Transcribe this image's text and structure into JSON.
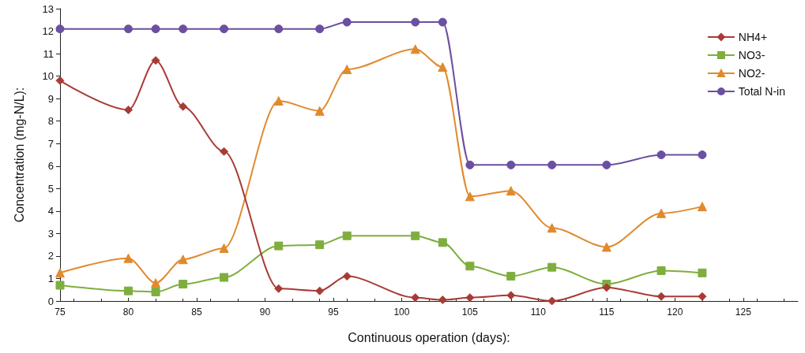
{
  "chart_data": {
    "type": "line",
    "xlabel": "Continuous operation (days):",
    "ylabel": "Concentration (mg-N/L):",
    "x": [
      75,
      80,
      82,
      84,
      87,
      91,
      94,
      96,
      101,
      103,
      105,
      108,
      111,
      115,
      119,
      122
    ],
    "series": [
      {
        "name": "NH4+",
        "color": "#a83b36",
        "marker": "diamond",
        "values": [
          9.8,
          8.5,
          10.7,
          8.65,
          6.65,
          0.55,
          0.45,
          1.1,
          0.15,
          0.05,
          0.15,
          0.25,
          0,
          0.6,
          0.2,
          0.2
        ]
      },
      {
        "name": "NO3-",
        "color": "#7fae3e",
        "marker": "square",
        "values": [
          0.7,
          0.45,
          0.4,
          0.75,
          1.05,
          2.45,
          2.5,
          2.9,
          2.9,
          2.6,
          1.55,
          1.1,
          1.5,
          0.75,
          1.35,
          1.25
        ]
      },
      {
        "name": "NO2-",
        "color": "#e08a2e",
        "marker": "triangle",
        "values": [
          1.25,
          1.9,
          0.8,
          1.85,
          2.35,
          8.9,
          8.45,
          10.3,
          11.2,
          10.4,
          4.65,
          4.9,
          3.25,
          2.4,
          3.9,
          4.2
        ]
      },
      {
        "name": "Total N-in",
        "color": "#6b4fa0",
        "marker": "circle",
        "values": [
          12.1,
          12.1,
          12.1,
          12.1,
          12.1,
          12.1,
          12.1,
          12.4,
          12.4,
          12.4,
          6.05,
          6.05,
          6.05,
          6.05,
          6.5,
          6.5
        ]
      }
    ],
    "xlim": [
      75,
      129
    ],
    "xticks": [
      75,
      80,
      85,
      90,
      95,
      100,
      105,
      110,
      115,
      120,
      125
    ],
    "ylim": [
      0,
      13
    ],
    "yticks": [
      0,
      1,
      2,
      3,
      4,
      5,
      6,
      7,
      8,
      9,
      10,
      11,
      12,
      13
    ],
    "grid": false,
    "legend": "top right"
  }
}
